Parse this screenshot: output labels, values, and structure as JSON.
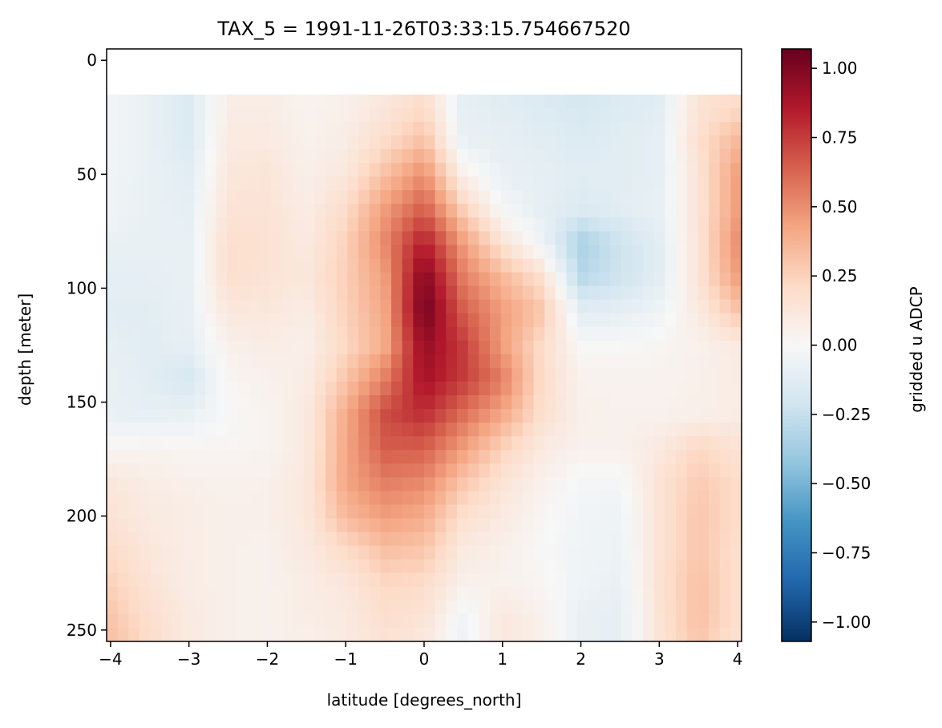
{
  "chart_data": {
    "type": "heatmap",
    "title": "TAX_5 = 1991-11-26T03:33:15.754667520",
    "xlabel": "latitude [degrees_north]",
    "ylabel": "depth [meter]",
    "colorbar_label": "gridded u ADCP",
    "colormap": "RdBu_r",
    "colormap_stops": [
      "#053061",
      "#2166ac",
      "#4393c3",
      "#92c5de",
      "#d1e5f0",
      "#f7f7f7",
      "#fddbc7",
      "#f4a582",
      "#d6604d",
      "#b2182b",
      "#67001f"
    ],
    "xlim": [
      -4.05,
      4.05
    ],
    "ylim": [
      255,
      -5
    ],
    "y_inverted": true,
    "clim": [
      -1.07,
      1.07
    ],
    "xticks": [
      -4,
      -3,
      -2,
      -1,
      0,
      1,
      2,
      3,
      4
    ],
    "xtick_labels": [
      "−4",
      "−3",
      "−2",
      "−1",
      "0",
      "1",
      "2",
      "3",
      "4"
    ],
    "yticks": [
      0,
      50,
      100,
      150,
      200,
      250
    ],
    "ytick_labels": [
      "0",
      "50",
      "100",
      "150",
      "200",
      "250"
    ],
    "cticks": [
      1.0,
      0.75,
      0.5,
      0.25,
      0.0,
      -0.25,
      -0.5,
      -0.75,
      -1.0
    ],
    "ctick_labels": [
      "1.00",
      "0.75",
      "0.50",
      "0.25",
      "0.00",
      "−0.25",
      "−0.50",
      "−0.75",
      "−1.00"
    ],
    "lat_values": [
      -4.0,
      -3.5,
      -3.0,
      -2.5,
      -2.0,
      -1.5,
      -1.0,
      -0.5,
      0.0,
      0.5,
      1.0,
      1.5,
      2.0,
      2.5,
      3.0,
      3.5,
      4.0
    ],
    "depth_values": [
      20,
      35,
      50,
      65,
      80,
      95,
      110,
      125,
      140,
      155,
      170,
      185,
      200,
      215,
      230,
      245,
      255
    ],
    "values": [
      [
        -0.03,
        -0.08,
        -0.15,
        0.08,
        0.08,
        0.04,
        0.06,
        0.12,
        0.2,
        -0.1,
        -0.12,
        -0.15,
        -0.18,
        -0.15,
        -0.12,
        0.15,
        0.2
      ],
      [
        -0.03,
        -0.08,
        -0.15,
        0.1,
        0.1,
        0.05,
        0.08,
        0.2,
        0.32,
        -0.08,
        -0.1,
        -0.12,
        -0.15,
        -0.12,
        -0.1,
        0.18,
        0.35
      ],
      [
        -0.04,
        -0.08,
        -0.12,
        0.12,
        0.14,
        0.06,
        0.12,
        0.32,
        0.5,
        0.05,
        -0.08,
        -0.1,
        -0.12,
        -0.12,
        -0.1,
        0.15,
        0.45
      ],
      [
        -0.05,
        -0.08,
        -0.1,
        0.15,
        0.15,
        0.08,
        0.2,
        0.45,
        0.65,
        0.25,
        -0.02,
        -0.1,
        -0.15,
        -0.12,
        -0.08,
        0.15,
        0.45
      ],
      [
        -0.08,
        -0.08,
        -0.08,
        0.18,
        0.16,
        0.1,
        0.25,
        0.52,
        0.85,
        0.45,
        0.15,
        -0.05,
        -0.35,
        -0.22,
        -0.12,
        0.15,
        0.5
      ],
      [
        -0.1,
        -0.1,
        -0.08,
        0.18,
        0.15,
        0.12,
        0.26,
        0.45,
        1.0,
        0.55,
        0.35,
        0.18,
        -0.3,
        -0.22,
        -0.12,
        0.15,
        0.45
      ],
      [
        -0.12,
        -0.12,
        -0.08,
        0.12,
        0.12,
        0.08,
        0.25,
        0.42,
        1.05,
        0.65,
        0.45,
        0.3,
        -0.12,
        -0.1,
        -0.05,
        0.1,
        0.3
      ],
      [
        -0.1,
        -0.12,
        -0.1,
        0.06,
        0.08,
        0.06,
        0.22,
        0.4,
        0.95,
        0.75,
        0.45,
        0.2,
        0.0,
        0.0,
        0.02,
        0.05,
        0.1
      ],
      [
        -0.08,
        -0.12,
        -0.18,
        0.02,
        0.05,
        0.08,
        0.3,
        0.55,
        0.9,
        0.75,
        0.55,
        0.2,
        0.05,
        0.04,
        0.04,
        0.06,
        0.08
      ],
      [
        -0.08,
        -0.1,
        -0.08,
        0.0,
        0.03,
        0.1,
        0.4,
        0.7,
        0.8,
        0.6,
        0.42,
        0.18,
        0.06,
        0.05,
        0.05,
        0.06,
        0.08
      ],
      [
        0.02,
        0.03,
        0.02,
        0.02,
        0.03,
        0.1,
        0.42,
        0.65,
        0.65,
        0.45,
        0.25,
        0.1,
        0.05,
        0.05,
        0.1,
        0.22,
        0.15
      ],
      [
        0.12,
        0.08,
        0.06,
        0.05,
        0.06,
        0.12,
        0.42,
        0.55,
        0.52,
        0.3,
        0.15,
        0.05,
        -0.02,
        -0.02,
        0.15,
        0.28,
        0.2
      ],
      [
        0.15,
        0.1,
        0.08,
        0.06,
        0.06,
        0.12,
        0.35,
        0.45,
        0.4,
        0.18,
        0.1,
        0.02,
        -0.04,
        -0.05,
        0.15,
        0.3,
        0.2
      ],
      [
        0.2,
        0.12,
        0.08,
        0.06,
        0.05,
        0.1,
        0.2,
        0.32,
        0.3,
        0.1,
        0.06,
        0.0,
        -0.04,
        -0.06,
        0.15,
        0.3,
        0.18
      ],
      [
        0.25,
        0.15,
        0.08,
        0.06,
        0.05,
        0.08,
        0.12,
        0.22,
        0.2,
        0.05,
        0.05,
        0.02,
        -0.05,
        -0.08,
        0.16,
        0.32,
        0.18
      ],
      [
        0.3,
        0.18,
        0.1,
        0.06,
        0.05,
        0.08,
        0.1,
        0.18,
        0.15,
        -0.04,
        0.12,
        0.05,
        -0.08,
        -0.1,
        0.15,
        0.32,
        0.18
      ],
      [
        0.32,
        0.2,
        0.1,
        0.06,
        0.05,
        0.06,
        0.1,
        0.15,
        0.12,
        -0.05,
        0.12,
        0.05,
        -0.08,
        -0.1,
        0.15,
        0.3,
        0.15
      ]
    ]
  }
}
